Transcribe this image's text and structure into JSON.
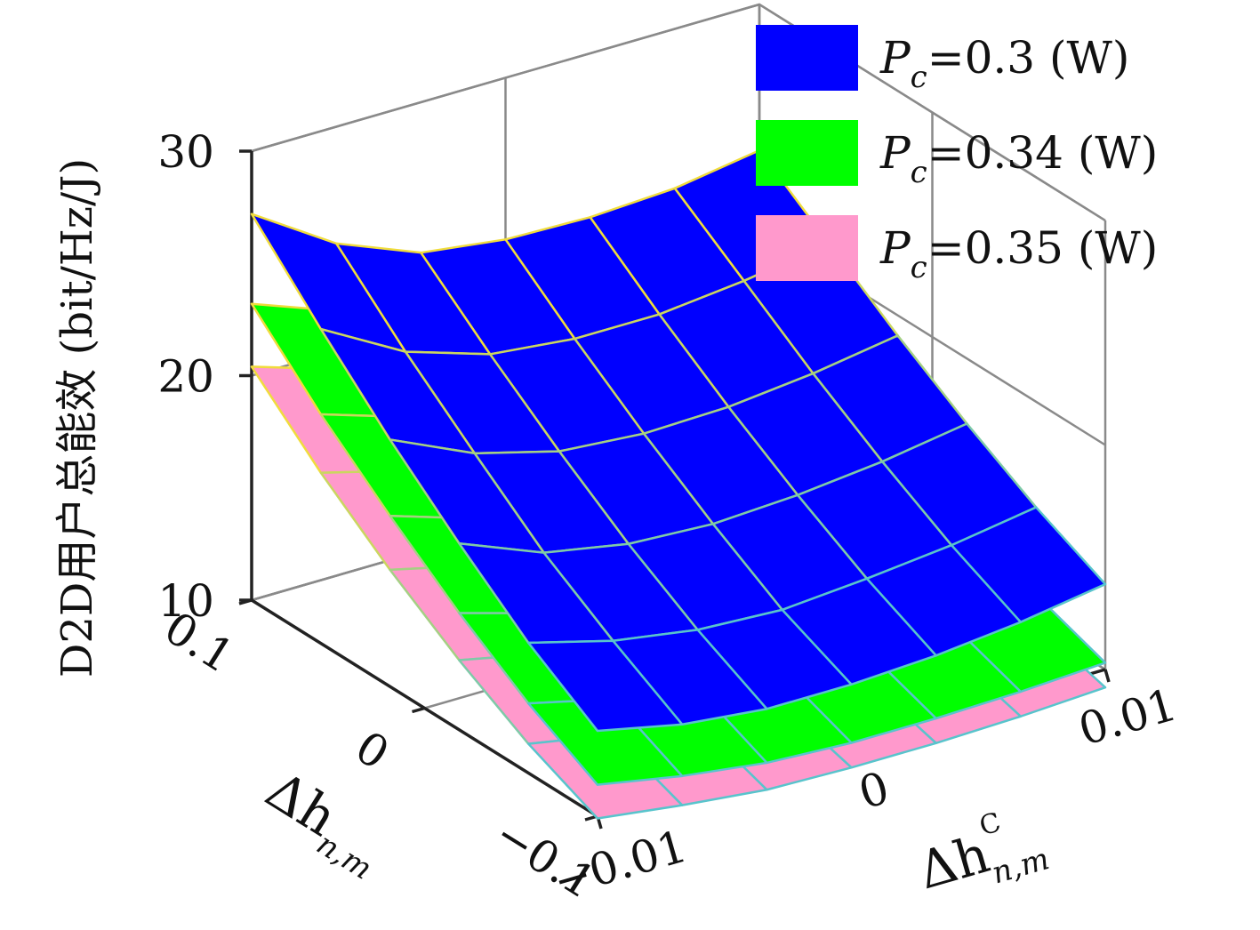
{
  "chart_data": {
    "type": "surface",
    "title": "",
    "zlabel": "D2D用户总能效 (bit/Hz/J)",
    "x_axis": {
      "label_main": "Δh",
      "label_sub": "n,m",
      "ticks": [
        {
          "value": 0.1,
          "label": "0.1"
        },
        {
          "value": 0,
          "label": "0"
        },
        {
          "value": -0.1,
          "label": "−0.1"
        }
      ]
    },
    "y_axis": {
      "label_main": "Δh",
      "label_sub": "n,m",
      "label_sup": "C",
      "ticks": [
        {
          "value": -0.01,
          "label": "−0.01"
        },
        {
          "value": 0,
          "label": "0"
        },
        {
          "value": 0.01,
          "label": "0.01"
        }
      ]
    },
    "z_axis": {
      "range": [
        10,
        30
      ],
      "ticks": [
        {
          "value": 10,
          "label": "10"
        },
        {
          "value": 20,
          "label": "20"
        },
        {
          "value": 30,
          "label": "30"
        }
      ]
    },
    "grid": true,
    "legend_position": "top-right",
    "series": [
      {
        "name": "P_c=0.3 (W)",
        "legend_parts": {
          "symbol": "P",
          "sub": "c",
          "rest": "=0.3 (W)"
        },
        "color": "#0000ff",
        "z_grid": [
          [
            27.2,
            24.8,
            23.3,
            22.8,
            22.7,
            22.9,
            23.5
          ],
          [
            24.0,
            21.9,
            20.7,
            20.3,
            20.3,
            20.7,
            21.3
          ],
          [
            21.0,
            19.3,
            18.3,
            18.0,
            18.1,
            18.5,
            19.1
          ],
          [
            18.3,
            16.8,
            16.1,
            15.9,
            16.1,
            16.5,
            17.1
          ],
          [
            15.8,
            14.8,
            14.2,
            14.0,
            14.3,
            14.7,
            15.3
          ],
          [
            13.8,
            13.0,
            12.6,
            12.6,
            12.8,
            13.2,
            13.8
          ]
        ]
      },
      {
        "name": "P_c=0.34 (W)",
        "legend_parts": {
          "symbol": "P",
          "sub": "c",
          "rest": "=0.34 (W)"
        },
        "color": "#00ff00",
        "z_grid": [
          [
            23.2,
            21.8,
            20.8,
            20.2,
            19.9,
            19.8,
            19.9
          ],
          [
            20.2,
            19.0,
            18.0,
            17.4,
            17.2,
            17.2,
            17.3
          ],
          [
            17.6,
            16.4,
            15.5,
            15.0,
            14.8,
            14.8,
            15.0
          ],
          [
            15.2,
            14.1,
            13.4,
            13.0,
            12.8,
            12.8,
            13.0
          ],
          [
            13.1,
            12.2,
            11.6,
            11.2,
            11.1,
            11.2,
            11.4
          ],
          [
            11.4,
            10.7,
            10.2,
            10.0,
            10.0,
            10.1,
            10.3
          ]
        ]
      },
      {
        "name": "P_c=0.35 (W)",
        "legend_parts": {
          "symbol": "P",
          "sub": "c",
          "rest": "=0.35 (W)"
        },
        "color": "#ff99cc",
        "z_grid": [
          [
            20.4,
            19.2,
            18.2,
            17.6,
            17.2,
            17.0,
            17.0
          ],
          [
            17.6,
            16.6,
            15.7,
            15.1,
            14.8,
            14.7,
            14.8
          ],
          [
            15.2,
            14.3,
            13.5,
            13.0,
            12.8,
            12.8,
            12.9
          ],
          [
            13.1,
            12.3,
            11.7,
            11.3,
            11.1,
            11.1,
            11.3
          ],
          [
            11.3,
            10.6,
            10.1,
            9.8,
            9.8,
            9.9,
            10.1
          ],
          [
            9.9,
            9.4,
            9.0,
            8.9,
            8.9,
            9.0,
            9.2
          ]
        ]
      }
    ]
  }
}
